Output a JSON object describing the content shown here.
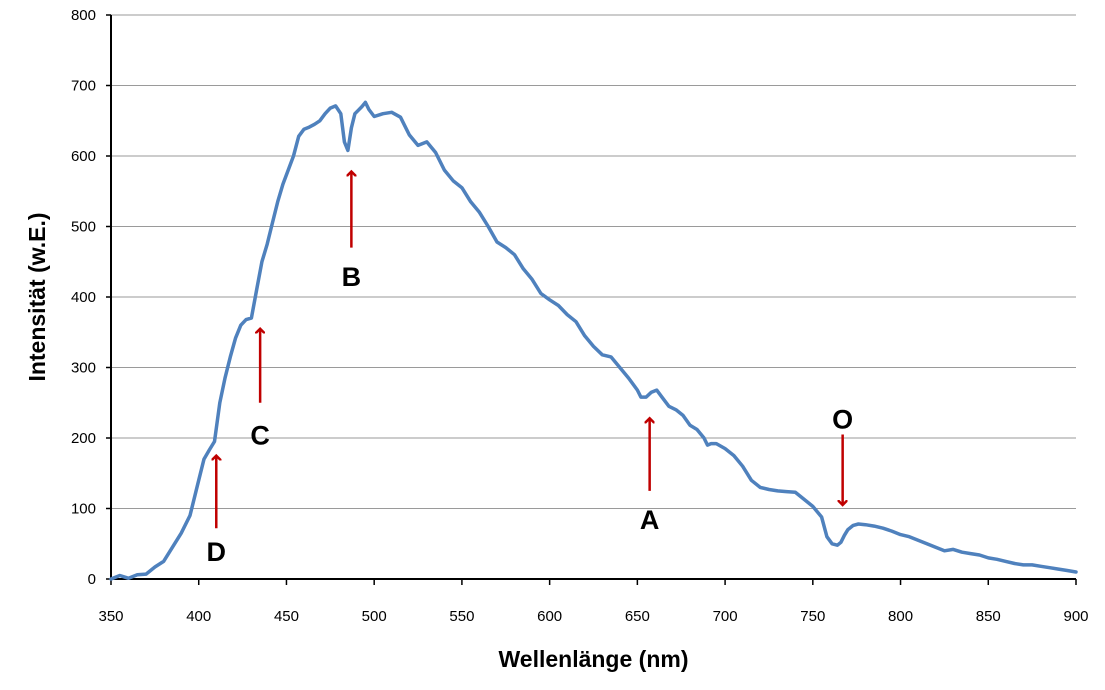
{
  "chart_data": {
    "type": "line",
    "title": "",
    "xlabel": "Wellenlänge (nm)",
    "ylabel": "Intensität (w.E.)",
    "xlim": [
      350,
      900
    ],
    "ylim": [
      0,
      800
    ],
    "x_ticks": [
      350,
      400,
      450,
      500,
      550,
      600,
      650,
      700,
      750,
      800,
      850,
      900
    ],
    "y_ticks": [
      0,
      100,
      200,
      300,
      400,
      500,
      600,
      700,
      800
    ],
    "grid": "horizontal",
    "legend": "none",
    "line_color": "#4f81bd",
    "series": [
      {
        "name": "",
        "x": [
          350,
          355,
          360,
          365,
          370,
          375,
          380,
          385,
          390,
          395,
          400,
          403,
          406,
          409,
          412,
          415,
          418,
          421,
          424,
          427,
          430,
          433,
          436,
          439,
          442,
          445,
          448,
          451,
          454,
          457,
          460,
          463,
          466,
          469,
          472,
          475,
          478,
          481,
          483,
          485,
          487,
          489,
          491,
          493,
          495,
          497,
          500,
          505,
          510,
          515,
          520,
          525,
          530,
          535,
          540,
          545,
          550,
          555,
          560,
          565,
          570,
          575,
          580,
          585,
          590,
          595,
          600,
          605,
          610,
          615,
          620,
          625,
          630,
          635,
          640,
          645,
          650,
          652,
          655,
          658,
          661,
          664,
          668,
          672,
          676,
          680,
          684,
          688,
          690,
          692,
          695,
          700,
          705,
          710,
          715,
          720,
          725,
          730,
          735,
          740,
          745,
          750,
          755,
          758,
          761,
          764,
          766,
          768,
          770,
          773,
          776,
          780,
          785,
          790,
          795,
          800,
          805,
          810,
          815,
          820,
          825,
          830,
          835,
          840,
          845,
          850,
          855,
          860,
          865,
          870,
          875,
          880,
          885,
          890,
          895,
          900
        ],
        "values": [
          0,
          5,
          1,
          6,
          7,
          17,
          25,
          45,
          65,
          90,
          140,
          170,
          183,
          195,
          250,
          285,
          315,
          342,
          360,
          368,
          370,
          410,
          450,
          475,
          505,
          535,
          560,
          580,
          600,
          628,
          638,
          641,
          645,
          650,
          660,
          668,
          671,
          660,
          620,
          608,
          640,
          660,
          665,
          670,
          676,
          666,
          656,
          660,
          662,
          655,
          630,
          615,
          620,
          605,
          580,
          565,
          555,
          535,
          520,
          500,
          478,
          470,
          460,
          440,
          425,
          405,
          396,
          388,
          375,
          365,
          345,
          330,
          318,
          315,
          300,
          285,
          268,
          258,
          258,
          265,
          268,
          258,
          245,
          240,
          232,
          218,
          212,
          200,
          190,
          192,
          192,
          185,
          175,
          160,
          140,
          130,
          127,
          125,
          124,
          123,
          113,
          103,
          88,
          60,
          50,
          48,
          52,
          62,
          70,
          76,
          78,
          77,
          75,
          72,
          68,
          63,
          60,
          55,
          50,
          45,
          40,
          42,
          38,
          36,
          34,
          30,
          28,
          25,
          22,
          20,
          20,
          18,
          16,
          14,
          12,
          10
        ]
      }
    ],
    "annotations": [
      {
        "label": "D",
        "x": 410,
        "arrow": "up",
        "color": "#c00000",
        "tip_y": 175,
        "tail_y": 72,
        "label_y": 40
      },
      {
        "label": "C",
        "x": 435,
        "arrow": "up",
        "color": "#c00000",
        "tip_y": 355,
        "tail_y": 250,
        "label_y": 205
      },
      {
        "label": "B",
        "x": 487,
        "arrow": "up",
        "color": "#c00000",
        "tip_y": 578,
        "tail_y": 470,
        "label_y": 430
      },
      {
        "label": "A",
        "x": 657,
        "arrow": "up",
        "color": "#c00000",
        "tip_y": 228,
        "tail_y": 125,
        "label_y": 85
      },
      {
        "label": "O",
        "x": 767,
        "arrow": "down",
        "color": "#c00000",
        "tip_y": 105,
        "tail_y": 205,
        "label_y": 228
      }
    ]
  }
}
